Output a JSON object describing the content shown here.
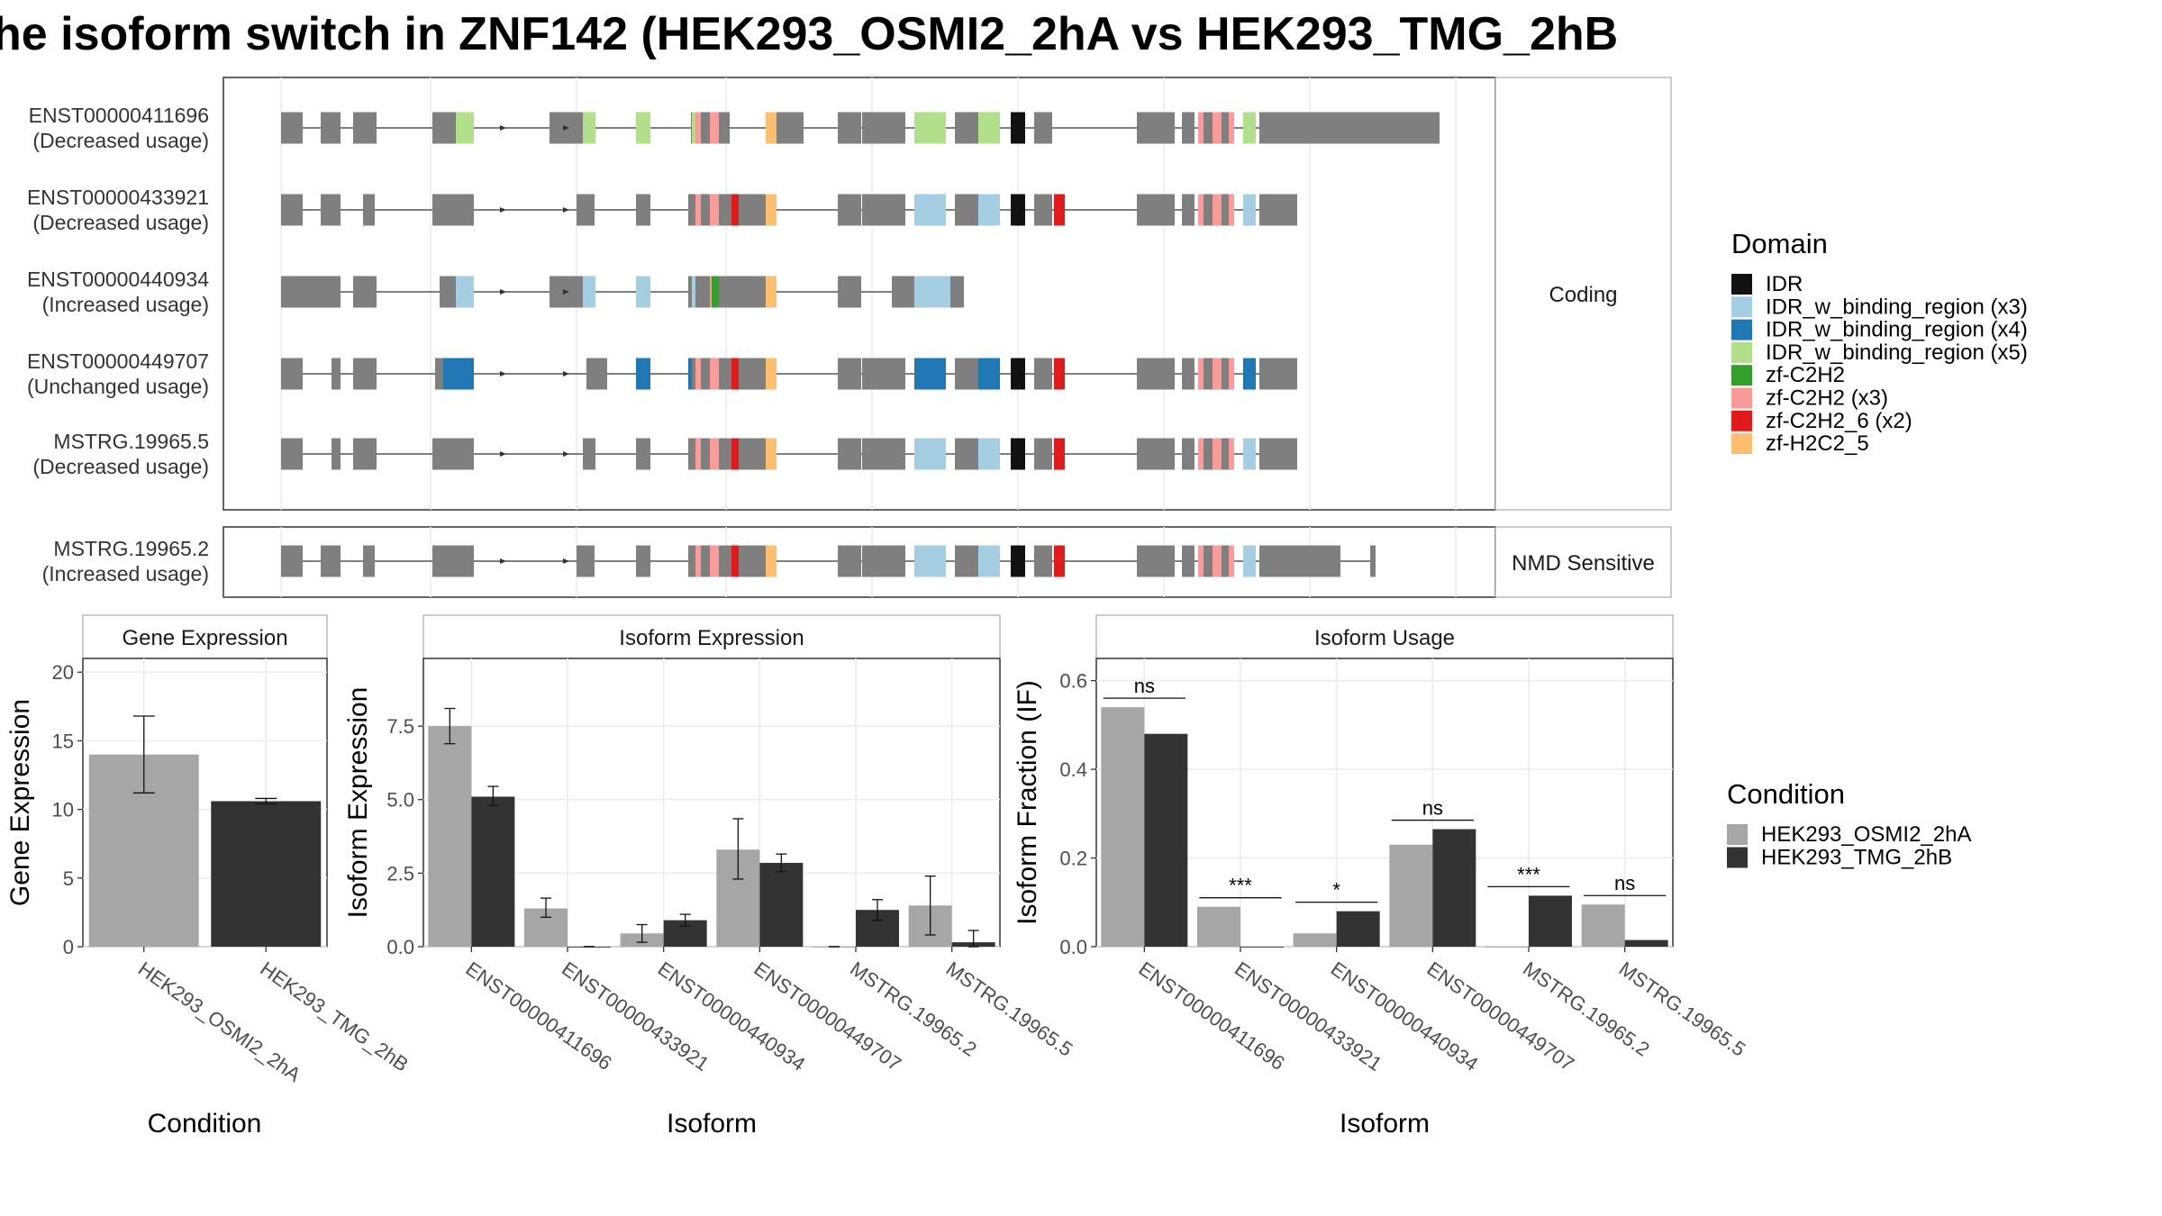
{
  "title": "he isoform switch in ZNF142 (HEK293_OSMI2_2hA vs HEK293_TMG_2hB",
  "colors": {
    "exon": "#7f7f7f",
    "IDR": "#111111",
    "IDR_w_binding_region (x3)": "#a6cee3",
    "IDR_w_binding_region (x4)": "#1f78b4",
    "IDR_w_binding_region (x5)": "#b2df8a",
    "zf-C2H2": "#33a02c",
    "zf-C2H2 (x3)": "#fb9a99",
    "zf-C2H2_6 (x2)": "#e31a1c",
    "zf-H2C2_5": "#fdbf6f",
    "cond_A": "#a6a6a6",
    "cond_B": "#333333"
  },
  "structure": {
    "groups": [
      {
        "label": "Coding",
        "transcripts": [
          {
            "id": "ENST00000411696",
            "usage": "(Decreased usage)"
          },
          {
            "id": "ENST00000433921",
            "usage": "(Decreased usage)"
          },
          {
            "id": "ENST00000440934",
            "usage": "(Increased usage)"
          },
          {
            "id": "ENST00000449707",
            "usage": "(Unchanged usage)"
          },
          {
            "id": "MSTRG.19965.5",
            "usage": "(Decreased usage)"
          }
        ]
      },
      {
        "label": "NMD Sensitive",
        "transcripts": [
          {
            "id": "MSTRG.19965.2",
            "usage": "(Increased usage)"
          }
        ]
      }
    ]
  },
  "legend_domain": {
    "title": "Domain",
    "items": [
      "IDR",
      "IDR_w_binding_region (x3)",
      "IDR_w_binding_region (x4)",
      "IDR_w_binding_region (x5)",
      "zf-C2H2",
      "zf-C2H2 (x3)",
      "zf-C2H2_6 (x2)",
      "zf-H2C2_5"
    ]
  },
  "legend_condition": {
    "title": "Condition",
    "items": [
      "HEK293_OSMI2_2hA",
      "HEK293_TMG_2hB"
    ]
  },
  "chart_data": [
    {
      "type": "bar",
      "panel": "Gene Expression",
      "categories": [
        "HEK293_OSMI2_2hA",
        "HEK293_TMG_2hB"
      ],
      "values": [
        14.0,
        10.6
      ],
      "errors": [
        [
          11.2,
          16.8
        ],
        [
          10.4,
          10.8
        ]
      ],
      "xlabel": "Condition",
      "ylabel": "Gene Expression",
      "ylim": [
        0,
        21
      ],
      "yticks": [
        0,
        5,
        10,
        15,
        20
      ],
      "ytick_labels": [
        "0",
        "5",
        "10",
        "15",
        "20"
      ]
    },
    {
      "type": "bar",
      "panel": "Isoform Expression",
      "categories": [
        "ENST00000411696",
        "ENST00000433921",
        "ENST00000440934",
        "ENST00000449707",
        "MSTRG.19965.2",
        "MSTRG.19965.5"
      ],
      "series": [
        {
          "name": "HEK293_OSMI2_2hA",
          "values": [
            7.5,
            1.3,
            0.45,
            3.3,
            0.0,
            1.4
          ],
          "errors": [
            [
              6.9,
              8.1
            ],
            [
              1.0,
              1.65
            ],
            [
              0.15,
              0.75
            ],
            [
              2.3,
              4.35
            ],
            [
              0.0,
              0.0
            ],
            [
              0.4,
              2.4
            ]
          ]
        },
        {
          "name": "HEK293_TMG_2hB",
          "values": [
            5.1,
            0.0,
            0.9,
            2.85,
            1.25,
            0.15
          ],
          "errors": [
            [
              4.8,
              5.45
            ],
            [
              0.0,
              0.0
            ],
            [
              0.7,
              1.1
            ],
            [
              2.55,
              3.15
            ],
            [
              0.9,
              1.6
            ],
            [
              0.0,
              0.55
            ]
          ]
        }
      ],
      "xlabel": "Isoform",
      "ylabel": "Isoform Expression",
      "ylim": [
        0,
        9.8
      ],
      "yticks": [
        0,
        2.5,
        5.0,
        7.5
      ],
      "ytick_labels": [
        "0.0",
        "2.5",
        "5.0",
        "7.5"
      ]
    },
    {
      "type": "bar",
      "panel": "Isoform Usage",
      "categories": [
        "ENST00000411696",
        "ENST00000433921",
        "ENST00000440934",
        "ENST00000449707",
        "MSTRG.19965.2",
        "MSTRG.19965.5"
      ],
      "series": [
        {
          "name": "HEK293_OSMI2_2hA",
          "values": [
            0.54,
            0.09,
            0.03,
            0.23,
            0.0,
            0.095
          ]
        },
        {
          "name": "HEK293_TMG_2hB",
          "values": [
            0.48,
            0.0,
            0.08,
            0.265,
            0.115,
            0.015
          ]
        }
      ],
      "significance": [
        "ns",
        "***",
        "*",
        "ns",
        "***",
        "ns"
      ],
      "xlabel": "Isoform",
      "ylabel": "Isoform Fraction (IF)",
      "ylim": [
        0,
        0.65
      ],
      "yticks": [
        0,
        0.2,
        0.4,
        0.6
      ],
      "ytick_labels": [
        "0.0",
        "0.2",
        "0.4",
        "0.6"
      ]
    }
  ]
}
